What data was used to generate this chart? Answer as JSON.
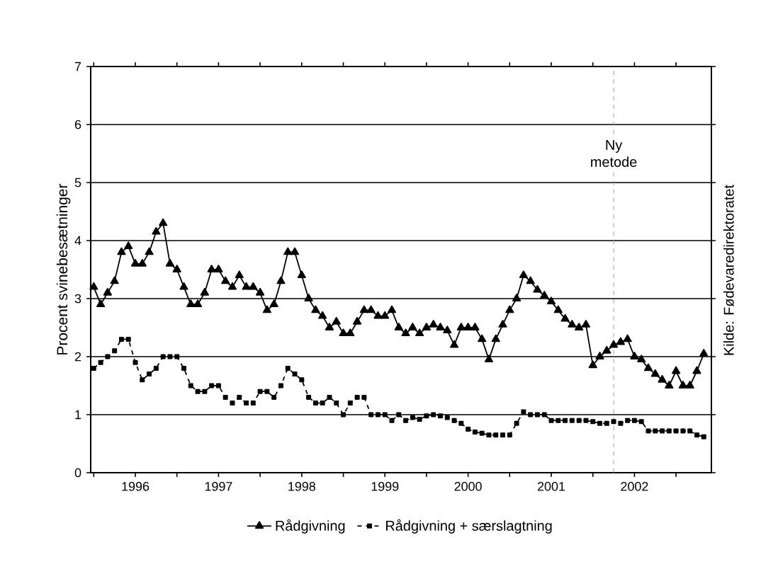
{
  "chart_data": {
    "type": "line",
    "ylabel": "Procent svinebesætninger",
    "annotations": [
      "Kilde: Fødevaredirektoratet"
    ],
    "x": [
      "1995-07",
      "1995-08",
      "1995-09",
      "1995-10",
      "1995-11",
      "1995-12",
      "1996-01",
      "1996-02",
      "1996-03",
      "1996-04",
      "1996-05",
      "1996-06",
      "1996-07",
      "1996-08",
      "1996-09",
      "1996-10",
      "1996-11",
      "1996-12",
      "1997-01",
      "1997-02",
      "1997-03",
      "1997-04",
      "1997-05",
      "1997-06",
      "1997-07",
      "1997-08",
      "1997-09",
      "1997-10",
      "1997-11",
      "1997-12",
      "1998-01",
      "1998-02",
      "1998-03",
      "1998-04",
      "1998-05",
      "1998-06",
      "1998-07",
      "1998-08",
      "1998-09",
      "1998-10",
      "1998-11",
      "1998-12",
      "1999-01",
      "1999-02",
      "1999-03",
      "1999-04",
      "1999-05",
      "1999-06",
      "1999-07",
      "1999-08",
      "1999-09",
      "1999-10",
      "1999-11",
      "1999-12",
      "2000-01",
      "2000-02",
      "2000-03",
      "2000-04",
      "2000-05",
      "2000-06",
      "2000-07",
      "2000-08",
      "2000-09",
      "2000-10",
      "2000-11",
      "2000-12",
      "2001-01",
      "2001-02",
      "2001-03",
      "2001-04",
      "2001-05",
      "2001-06",
      "2001-07",
      "2001-08",
      "2001-09",
      "2001-10",
      "2001-11",
      "2001-12",
      "2002-01",
      "2002-02",
      "2002-03",
      "2002-04",
      "2002-05",
      "2002-06",
      "2002-07",
      "2002-08",
      "2002-09",
      "2002-10",
      "2002-11"
    ],
    "series": [
      {
        "name": "Rådgivning",
        "color": "#000000",
        "marker": "triangle",
        "line_style": "solid",
        "values": [
          3.2,
          2.9,
          3.1,
          3.3,
          3.8,
          3.9,
          3.6,
          3.6,
          3.8,
          4.15,
          4.3,
          3.6,
          3.5,
          3.2,
          2.9,
          2.9,
          3.1,
          3.5,
          3.5,
          3.3,
          3.2,
          3.4,
          3.2,
          3.2,
          3.1,
          2.8,
          2.9,
          3.3,
          3.8,
          3.8,
          3.4,
          3.0,
          2.8,
          2.7,
          2.5,
          2.6,
          2.4,
          2.4,
          2.6,
          2.8,
          2.8,
          2.7,
          2.7,
          2.8,
          2.5,
          2.4,
          2.5,
          2.4,
          2.5,
          2.55,
          2.5,
          2.45,
          2.2,
          2.5,
          2.5,
          2.5,
          2.3,
          1.95,
          2.3,
          2.55,
          2.8,
          3.0,
          3.4,
          3.3,
          3.15,
          3.05,
          2.95,
          2.8,
          2.65,
          2.55,
          2.5,
          2.55,
          1.85,
          2.0,
          2.1,
          2.2,
          2.25,
          2.3,
          2.0,
          1.95,
          1.8,
          1.7,
          1.6,
          1.5,
          1.75,
          1.5,
          1.5,
          1.75,
          2.05
        ]
      },
      {
        "name": "Rådgivning + særslagtning",
        "color": "#000000",
        "marker": "square",
        "line_style": "dashed",
        "values": [
          1.8,
          1.9,
          2.0,
          2.1,
          2.3,
          2.3,
          1.9,
          1.6,
          1.7,
          1.8,
          2.0,
          2.0,
          2.0,
          1.8,
          1.5,
          1.4,
          1.4,
          1.5,
          1.5,
          1.3,
          1.2,
          1.3,
          1.2,
          1.2,
          1.4,
          1.4,
          1.3,
          1.5,
          1.8,
          1.7,
          1.6,
          1.3,
          1.2,
          1.2,
          1.3,
          1.2,
          1.0,
          1.2,
          1.3,
          1.3,
          1.0,
          1.0,
          1.0,
          0.9,
          1.0,
          0.9,
          0.95,
          0.92,
          0.98,
          1.0,
          0.98,
          0.95,
          0.9,
          0.85,
          0.75,
          0.7,
          0.68,
          0.65,
          0.65,
          0.65,
          0.65,
          0.85,
          1.05,
          1.0,
          1.0,
          1.0,
          0.9,
          0.9,
          0.9,
          0.9,
          0.9,
          0.9,
          0.88,
          0.85,
          0.85,
          0.88,
          0.85,
          0.9,
          0.9,
          0.88,
          0.72,
          0.72,
          0.72,
          0.72,
          0.72,
          0.72,
          0.72,
          0.65,
          0.62
        ]
      }
    ],
    "xlim": [
      "1995-06-18",
      "2002-12-04"
    ],
    "xticks": [
      {
        "value": "1995-07",
        "label": null
      },
      "1996",
      {
        "value": "1996-07",
        "label": null
      },
      "1997",
      {
        "value": "1997-07",
        "label": null
      },
      "1998",
      {
        "value": "1998-07",
        "label": null
      },
      "1999",
      {
        "value": "1999-07",
        "label": null
      },
      "2000",
      {
        "value": "2000-07",
        "label": null
      },
      "2001",
      {
        "value": "2001-07",
        "label": null
      },
      "2002",
      {
        "value": "2002-07",
        "label": null
      }
    ],
    "ylim": [
      0,
      7
    ],
    "yticks": [
      0,
      1,
      2,
      3,
      4,
      5,
      6,
      7
    ],
    "grid": "y",
    "legend": "bottom",
    "ref_lines": [
      {
        "axis": "x",
        "value": "2001-10",
        "label": "Ny metode",
        "color": "#a0a0a0",
        "line_style": "dashed"
      }
    ]
  }
}
